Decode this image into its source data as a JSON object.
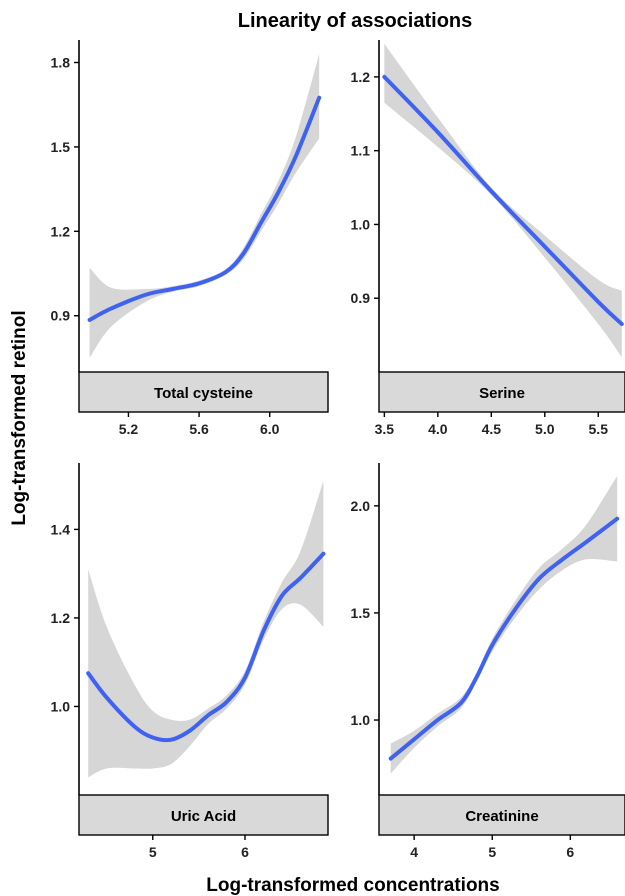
{
  "chart_data": {
    "type": "line",
    "title": "Linearity of associations",
    "xlabel": "Log-transformed concentrations",
    "ylabel": "Log-transformed retinol",
    "colors": {
      "line": "#3F63F0",
      "band": "#D6D6D6",
      "strip": "#D9D9D9",
      "axis": "#000000"
    },
    "panels": [
      {
        "strip": "Total cysteine",
        "xlim": [
          4.92,
          6.33
        ],
        "ylim": [
          0.7,
          1.88
        ],
        "xticks": [
          5.2,
          5.6,
          6.0
        ],
        "xtick_labels": [
          "5.2",
          "5.6",
          "6.0"
        ],
        "yticks": [
          0.9,
          1.2,
          1.5,
          1.8
        ],
        "ytick_labels": [
          "0.9",
          "1.2",
          "1.5",
          "1.8"
        ],
        "x": [
          4.98,
          5.1,
          5.3,
          5.45,
          5.6,
          5.75,
          5.85,
          5.95,
          6.05,
          6.15,
          6.28
        ],
        "y": [
          0.885,
          0.925,
          0.975,
          0.995,
          1.015,
          1.055,
          1.12,
          1.23,
          1.34,
          1.47,
          1.675
        ],
        "lower": [
          0.75,
          0.86,
          0.95,
          0.985,
          1.005,
          1.045,
          1.1,
          1.2,
          1.3,
          1.41,
          1.53
        ],
        "upper": [
          1.07,
          1.0,
          0.995,
          1.005,
          1.025,
          1.065,
          1.14,
          1.26,
          1.38,
          1.54,
          1.83
        ]
      },
      {
        "strip": "Serine",
        "xlim": [
          3.45,
          5.75
        ],
        "ylim": [
          0.8,
          1.25
        ],
        "xticks": [
          3.5,
          4.0,
          4.5,
          5.0,
          5.5
        ],
        "xtick_labels": [
          "3.5",
          "4.0",
          "4.5",
          "5.0",
          "5.5"
        ],
        "yticks": [
          0.9,
          1.0,
          1.1,
          1.2
        ],
        "ytick_labels": [
          "0.9",
          "1.0",
          "1.1",
          "1.2"
        ],
        "x": [
          3.5,
          4.0,
          4.5,
          5.0,
          5.5,
          5.72
        ],
        "y": [
          1.2,
          1.125,
          1.045,
          0.97,
          0.895,
          0.865
        ],
        "lower": [
          1.165,
          1.105,
          1.04,
          0.955,
          0.865,
          0.82
        ],
        "upper": [
          1.245,
          1.145,
          1.05,
          0.985,
          0.925,
          0.91
        ]
      },
      {
        "strip": "Uric Acid",
        "xlim": [
          4.2,
          6.9
        ],
        "ylim": [
          0.8,
          1.55
        ],
        "xticks": [
          5,
          6
        ],
        "xtick_labels": [
          "5",
          "6"
        ],
        "yticks": [
          1.0,
          1.2,
          1.4
        ],
        "ytick_labels": [
          "1.0",
          "1.2",
          "1.4"
        ],
        "x": [
          4.3,
          4.5,
          4.8,
          5.0,
          5.2,
          5.4,
          5.6,
          5.8,
          6.0,
          6.2,
          6.4,
          6.6,
          6.85
        ],
        "y": [
          1.075,
          1.02,
          0.955,
          0.93,
          0.925,
          0.945,
          0.98,
          1.01,
          1.065,
          1.17,
          1.25,
          1.29,
          1.345
        ],
        "lower": [
          0.84,
          0.86,
          0.86,
          0.86,
          0.87,
          0.91,
          0.96,
          0.995,
          1.05,
          1.15,
          1.22,
          1.23,
          1.18
        ],
        "upper": [
          1.31,
          1.18,
          1.05,
          0.99,
          0.97,
          0.97,
          0.995,
          1.025,
          1.08,
          1.19,
          1.28,
          1.35,
          1.51
        ]
      },
      {
        "strip": "Creatinine",
        "xlim": [
          3.55,
          6.7
        ],
        "ylim": [
          0.65,
          2.2
        ],
        "xticks": [
          4,
          5,
          6
        ],
        "xtick_labels": [
          "4",
          "5",
          "6"
        ],
        "yticks": [
          1.0,
          1.5,
          2.0
        ],
        "ytick_labels": [
          "1.0",
          "1.5",
          "2.0"
        ],
        "x": [
          3.7,
          4.0,
          4.3,
          4.6,
          4.8,
          5.0,
          5.3,
          5.6,
          5.9,
          6.2,
          6.6
        ],
        "y": [
          0.82,
          0.91,
          1.0,
          1.08,
          1.2,
          1.35,
          1.52,
          1.66,
          1.75,
          1.83,
          1.94
        ],
        "lower": [
          0.75,
          0.87,
          0.97,
          1.055,
          1.18,
          1.32,
          1.48,
          1.61,
          1.7,
          1.75,
          1.74
        ],
        "upper": [
          0.89,
          0.95,
          1.03,
          1.105,
          1.22,
          1.38,
          1.56,
          1.71,
          1.8,
          1.91,
          2.14
        ]
      }
    ]
  }
}
